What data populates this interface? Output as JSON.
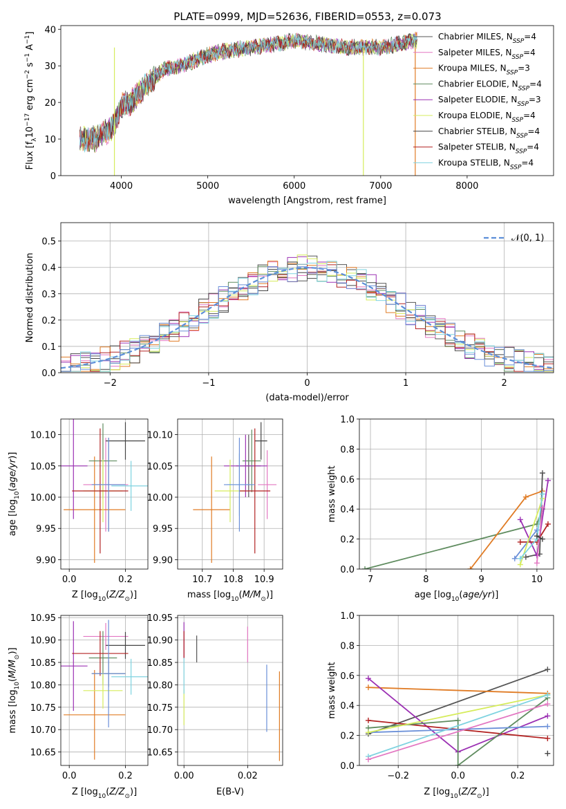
{
  "title": "PLATE=0999, MJD=52636, FIBERID=0553, z=0.073",
  "colors": {
    "Chabrier MILES": "#555555",
    "Salpeter MILES": "#e377c2",
    "Kroupa MILES": "#e07b24",
    "Chabrier ELODIE": "#5f8c5f",
    "Salpeter ELODIE": "#9b30b3",
    "Kroupa ELODIE": "#d6ec5c",
    "Chabrier STELIB": "#444444",
    "Salpeter STELIB": "#b22222",
    "Kroupa STELIB": "#7fd3e0",
    "extra": "#6a8fd8",
    "gaussian": "#5b8ed8"
  },
  "chart_data": [
    {
      "panel": "spectrum",
      "type": "line",
      "xlabel": "wavelength [Angstrom, rest frame]",
      "ylabel": "Flux [f_λ 10^-17 erg cm^-2 s^-1 A^-1]",
      "xlim": [
        3300,
        9000
      ],
      "ylim": [
        0,
        41
      ],
      "xticks": [
        4000,
        5000,
        6000,
        7000,
        8000
      ],
      "yticks": [
        0,
        10,
        20,
        30,
        40
      ],
      "legend_position": "upper right",
      "legend": [
        {
          "name": "Chabrier MILES",
          "n": "4"
        },
        {
          "name": "Salpeter MILES",
          "n": "4"
        },
        {
          "name": "Kroupa MILES",
          "n": "3"
        },
        {
          "name": "Chabrier ELODIE",
          "n": "4"
        },
        {
          "name": "Salpeter ELODIE",
          "n": "3"
        },
        {
          "name": "Kroupa ELODIE",
          "n": "4"
        },
        {
          "name": "Chabrier STELIB",
          "n": "4"
        },
        {
          "name": "Salpeter STELIB",
          "n": "4"
        },
        {
          "name": "Kroupa STELIB",
          "n": "4"
        }
      ],
      "continuum": {
        "x": [
          3500,
          3700,
          3900,
          4000,
          4100,
          4300,
          4500,
          4800,
          5000,
          5200,
          5500,
          5800,
          6000,
          6300,
          6600,
          6800,
          7000,
          7200,
          7400
        ],
        "y": [
          10,
          10,
          13,
          19,
          20,
          25,
          29,
          31,
          33,
          34,
          35,
          36,
          37,
          36,
          35,
          35,
          35,
          36,
          37
        ]
      }
    },
    {
      "panel": "residuals",
      "type": "area",
      "xlabel": "(data-model)/error",
      "ylabel": "Normed distribution",
      "xlim": [
        -2.5,
        2.5
      ],
      "ylim": [
        0,
        0.57
      ],
      "xticks": [
        -2,
        -1,
        0,
        1,
        2
      ],
      "yticks": [
        0.0,
        0.1,
        0.2,
        0.3,
        0.4,
        0.5
      ],
      "grid": true,
      "legend": "𝒩(0, 1)",
      "legend_position": "upper right"
    },
    {
      "panel": "age-Z",
      "type": "scatter",
      "xlabel": "Z [log10(Z/Z☉)]",
      "ylabel": "age [log10(age/yr)]",
      "xlim": [
        -0.03,
        0.28
      ],
      "ylim": [
        9.885,
        10.125
      ],
      "xticks": [
        0.0,
        0.2
      ],
      "yticks": [
        9.9,
        9.95,
        10.0,
        10.05,
        10.1
      ],
      "grid": true,
      "points": [
        {
          "x": 0.14,
          "y": 10.02,
          "xerr": 0.06,
          "yerr": 0.075,
          "series": "Chabrier MILES"
        },
        {
          "x": 0.13,
          "y": 10.02,
          "xerr": 0.08,
          "yerr": 0.075,
          "series": "Salpeter MILES"
        },
        {
          "x": 0.09,
          "y": 9.98,
          "xerr": 0.11,
          "yerr": 0.085,
          "series": "Kroupa MILES"
        },
        {
          "x": 0.12,
          "y": 10.058,
          "xerr": 0.05,
          "yerr": 0.06,
          "series": "Chabrier ELODIE"
        },
        {
          "x": 0.015,
          "y": 10.05,
          "xerr": 0.05,
          "yerr": 0.085,
          "series": "Salpeter ELODIE"
        },
        {
          "x": 0.12,
          "y": 10.01,
          "xerr": 0.07,
          "yerr": 0.05,
          "series": "Kroupa ELODIE"
        },
        {
          "x": 0.2,
          "y": 10.09,
          "xerr": 0.07,
          "yerr": 0.03,
          "series": "Chabrier STELIB"
        },
        {
          "x": 0.11,
          "y": 10.01,
          "xerr": 0.1,
          "yerr": 0.1,
          "series": "Salpeter STELIB"
        },
        {
          "x": 0.22,
          "y": 10.018,
          "xerr": 0.07,
          "yerr": 0.04,
          "series": "Kroupa STELIB"
        },
        {
          "x": 0.14,
          "y": 10.02,
          "xerr": 0.06,
          "yerr": 0.075,
          "series": "extra"
        }
      ]
    },
    {
      "panel": "age-mass",
      "type": "scatter",
      "xlabel": "mass [log10(M/M☉)]",
      "xlim": [
        10.62,
        10.96
      ],
      "ylim": [
        9.885,
        10.125
      ],
      "xticks": [
        10.7,
        10.8,
        10.9
      ],
      "yticks": [
        9.9,
        9.95,
        10.0,
        10.05,
        10.1
      ],
      "grid": true,
      "points": [
        {
          "x": 10.85,
          "y": 10.05,
          "xerr": 0.04,
          "yerr": 0.05,
          "series": "Chabrier MILES"
        },
        {
          "x": 10.91,
          "y": 10.02,
          "xerr": 0.03,
          "yerr": 0.055,
          "series": "Salpeter MILES"
        },
        {
          "x": 10.73,
          "y": 9.98,
          "xerr": 0.06,
          "yerr": 0.085,
          "series": "Kroupa MILES"
        },
        {
          "x": 10.86,
          "y": 10.058,
          "xerr": 0.03,
          "yerr": 0.05,
          "series": "Chabrier ELODIE"
        },
        {
          "x": 10.84,
          "y": 10.05,
          "xerr": 0.07,
          "yerr": 0.05,
          "series": "Salpeter ELODIE"
        },
        {
          "x": 10.79,
          "y": 10.01,
          "xerr": 0.05,
          "yerr": 0.05,
          "series": "Kroupa ELODIE"
        },
        {
          "x": 10.89,
          "y": 10.09,
          "xerr": 0.02,
          "yerr": 0.03,
          "series": "Chabrier STELIB"
        },
        {
          "x": 10.87,
          "y": 10.01,
          "xerr": 0.05,
          "yerr": 0.1,
          "series": "Salpeter STELIB"
        },
        {
          "x": 10.82,
          "y": 10.02,
          "xerr": 0.04,
          "yerr": 0.05,
          "series": "Kroupa STELIB"
        },
        {
          "x": 10.82,
          "y": 10.02,
          "xerr": 0.05,
          "yerr": 0.075,
          "series": "extra"
        }
      ]
    },
    {
      "panel": "weight-age",
      "type": "line",
      "xlabel": "age [log10(age/yr)]",
      "ylabel": "mass weight",
      "xlim": [
        6.8,
        10.3
      ],
      "ylim": [
        0,
        1
      ],
      "xticks": [
        7,
        8,
        9,
        10
      ],
      "yticks": [
        0.0,
        0.2,
        0.4,
        0.6,
        0.8,
        1.0
      ],
      "grid": true,
      "series": [
        {
          "name": "Chabrier ELODIE",
          "x": [
            6.9,
            10.0,
            10.1
          ],
          "y": [
            0.0,
            0.3,
            0.4
          ]
        },
        {
          "name": "Kroupa MILES",
          "x": [
            8.8,
            9.8,
            10.1
          ],
          "y": [
            0.0,
            0.48,
            0.52
          ]
        },
        {
          "name": "Chabrier MILES",
          "x": [
            9.8,
            10.05,
            10.1
          ],
          "y": [
            0.08,
            0.1,
            0.64
          ]
        },
        {
          "name": "Salpeter ELODIE",
          "x": [
            9.7,
            10.0,
            10.2
          ],
          "y": [
            0.33,
            0.09,
            0.59
          ]
        },
        {
          "name": "Salpeter STELIB",
          "x": [
            9.7,
            10.0,
            10.2
          ],
          "y": [
            0.18,
            0.18,
            0.3
          ]
        },
        {
          "name": "extra",
          "x": [
            9.6,
            10.0
          ],
          "y": [
            0.07,
            0.26
          ]
        },
        {
          "name": "Kroupa ELODIE",
          "x": [
            9.7,
            10.1
          ],
          "y": [
            0.03,
            0.47
          ]
        },
        {
          "name": "Kroupa STELIB",
          "x": [
            9.7,
            10.0,
            10.1
          ],
          "y": [
            0.07,
            0.2,
            0.5
          ]
        },
        {
          "name": "Salpeter MILES",
          "x": [
            10.0,
            10.1
          ],
          "y": [
            0.04,
            0.41
          ]
        },
        {
          "name": "Chabrier STELIB",
          "x": [
            10.0,
            10.1
          ],
          "y": [
            0.22,
            0.2
          ]
        }
      ]
    },
    {
      "panel": "mass-Z",
      "type": "scatter",
      "xlabel": "Z [log10(Z/Z☉)]",
      "ylabel": "mass [log10(M/M☉)]",
      "xlim": [
        -0.03,
        0.28
      ],
      "ylim": [
        10.62,
        10.955
      ],
      "xticks": [
        0.0,
        0.2
      ],
      "yticks": [
        10.65,
        10.7,
        10.75,
        10.8,
        10.85,
        10.9,
        10.95
      ],
      "grid": true,
      "points": [
        {
          "x": 0.14,
          "y": 10.825,
          "xerr": 0.06,
          "yerr": 0.03,
          "series": "Chabrier MILES"
        },
        {
          "x": 0.13,
          "y": 10.908,
          "xerr": 0.08,
          "yerr": 0.03,
          "series": "Salpeter MILES"
        },
        {
          "x": 0.09,
          "y": 10.733,
          "xerr": 0.11,
          "yerr": 0.1,
          "series": "Kroupa MILES"
        },
        {
          "x": 0.12,
          "y": 10.86,
          "xerr": 0.05,
          "yerr": 0.06,
          "series": "Chabrier ELODIE"
        },
        {
          "x": 0.015,
          "y": 10.842,
          "xerr": 0.05,
          "yerr": 0.1,
          "series": "Salpeter ELODIE"
        },
        {
          "x": 0.12,
          "y": 10.787,
          "xerr": 0.07,
          "yerr": 0.04,
          "series": "Kroupa ELODIE"
        },
        {
          "x": 0.2,
          "y": 10.888,
          "xerr": 0.07,
          "yerr": 0.03,
          "series": "Chabrier STELIB"
        },
        {
          "x": 0.11,
          "y": 10.87,
          "xerr": 0.1,
          "yerr": 0.05,
          "series": "Salpeter STELIB"
        },
        {
          "x": 0.22,
          "y": 10.818,
          "xerr": 0.07,
          "yerr": 0.04,
          "series": "Kroupa STELIB"
        },
        {
          "x": 0.14,
          "y": 10.825,
          "xerr": 0.06,
          "yerr": 0.12,
          "series": "extra"
        }
      ]
    },
    {
      "panel": "mass-EBV",
      "type": "scatter",
      "xlabel": "E(B-V)",
      "xlim": [
        -0.002,
        0.031
      ],
      "ylim": [
        10.62,
        10.955
      ],
      "xticks": [
        0.0,
        0.02
      ],
      "yticks": [
        10.65,
        10.7,
        10.75,
        10.8,
        10.85,
        10.9,
        10.95
      ],
      "grid": true,
      "points": [
        {
          "x": 0.004,
          "y": 10.88,
          "xerr": 0,
          "yerr": 0.03,
          "series": "Chabrier MILES"
        },
        {
          "x": 0.02,
          "y": 10.89,
          "xerr": 0,
          "yerr": 0.04,
          "series": "Salpeter MILES"
        },
        {
          "x": 0.03,
          "y": 10.73,
          "xerr": 0,
          "yerr": 0.1,
          "series": "Kroupa MILES"
        },
        {
          "x": 0.0,
          "y": 10.9,
          "xerr": 0,
          "yerr": 0.04,
          "series": "Salpeter ELODIE"
        },
        {
          "x": 0.0,
          "y": 10.75,
          "xerr": 0,
          "yerr": 0.04,
          "series": "Kroupa ELODIE"
        },
        {
          "x": 0.0,
          "y": 10.89,
          "xerr": 0,
          "yerr": 0.03,
          "series": "Salpeter STELIB"
        },
        {
          "x": 0.0,
          "y": 10.82,
          "xerr": 0,
          "yerr": 0.04,
          "series": "Kroupa STELIB"
        },
        {
          "x": 0.026,
          "y": 10.77,
          "xerr": 0,
          "yerr": 0.075,
          "series": "extra"
        }
      ]
    },
    {
      "panel": "weight-Z",
      "type": "line",
      "xlabel": "Z [log10(Z/Z☉)]",
      "ylabel": "mass weight",
      "xlim": [
        -0.33,
        0.32
      ],
      "ylim": [
        0,
        1
      ],
      "xticks": [
        -0.2,
        0.0,
        0.2
      ],
      "yticks": [
        0.0,
        0.2,
        0.4,
        0.6,
        0.8,
        1.0
      ],
      "grid": true,
      "series": [
        {
          "name": "Chabrier MILES",
          "x": [
            -0.3,
            0.3
          ],
          "y": [
            0.21,
            0.64
          ]
        },
        {
          "name": "Kroupa MILES",
          "x": [
            -0.3,
            0.3
          ],
          "y": [
            0.52,
            0.48
          ]
        },
        {
          "name": "Salpeter ELODIE",
          "x": [
            -0.3,
            0.0,
            0.3
          ],
          "y": [
            0.58,
            0.09,
            0.33
          ]
        },
        {
          "name": "Salpeter STELIB",
          "x": [
            -0.3,
            0.3
          ],
          "y": [
            0.3,
            0.18
          ]
        },
        {
          "name": "Chabrier ELODIE",
          "x": [
            -0.3,
            0.0,
            0.0,
            0.3
          ],
          "y": [
            0.25,
            0.3,
            0.0,
            0.45
          ]
        },
        {
          "name": "extra",
          "x": [
            -0.3,
            0.3
          ],
          "y": [
            0.22,
            0.26
          ]
        },
        {
          "name": "Kroupa ELODIE",
          "x": [
            -0.3,
            0.3
          ],
          "y": [
            0.22,
            0.47
          ]
        },
        {
          "name": "Kroupa STELIB",
          "x": [
            -0.3,
            0.3
          ],
          "y": [
            0.06,
            0.47
          ]
        },
        {
          "name": "Salpeter MILES",
          "x": [
            -0.3,
            0.3
          ],
          "y": [
            0.04,
            0.41
          ]
        },
        {
          "name": "Chabrier STELIB",
          "x": [
            0.3
          ],
          "y": [
            0.08
          ]
        }
      ]
    }
  ]
}
